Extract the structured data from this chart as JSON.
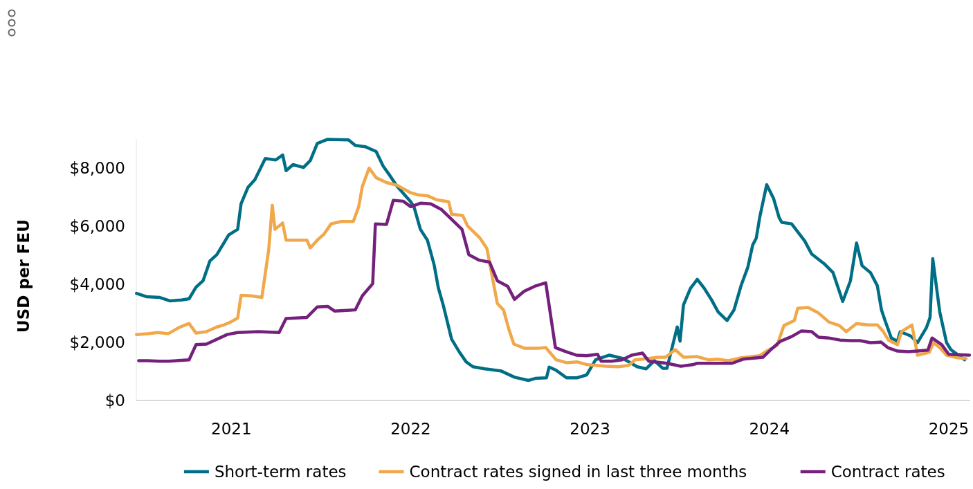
{
  "chart_data": {
    "type": "line",
    "ylabel": "USD per FEU",
    "xlim": [
      2020.47,
      2025.12
    ],
    "xticks": [
      2021,
      2022,
      2023,
      2024,
      2025
    ],
    "yticks": [
      {
        "value": 0,
        "label": "$0"
      },
      {
        "value": 2000,
        "label": "$2,000"
      },
      {
        "value": 4000,
        "label": "$4,000"
      },
      {
        "value": 6000,
        "label": "$6,000"
      },
      {
        "value": 8000,
        "label": "$8,000"
      }
    ],
    "ylim": [
      0,
      9000
    ],
    "grid": false,
    "legend": "bottom",
    "line_style": "solid",
    "marker": "none",
    "series": [
      {
        "name": "Short-term rates",
        "color": "#006e85",
        "x": [
          2020.471,
          2020.529,
          2020.598,
          2020.656,
          2020.722,
          2020.764,
          2020.803,
          2020.842,
          2020.88,
          2020.919,
          2020.958,
          2020.985,
          2021.035,
          2021.054,
          2021.093,
          2021.131,
          2021.189,
          2021.247,
          2021.286,
          2021.305,
          2021.344,
          2021.402,
          2021.44,
          2021.479,
          2021.537,
          2021.653,
          2021.691,
          2021.749,
          2021.807,
          2021.846,
          2021.884,
          2021.923,
          2022.0,
          2022.019,
          2022.054,
          2022.093,
          2022.131,
          2022.154,
          2022.181,
          2022.228,
          2022.27,
          2022.309,
          2022.347,
          2022.413,
          2022.502,
          2022.579,
          2022.656,
          2022.695,
          2022.757,
          2022.772,
          2022.811,
          2022.869,
          2022.927,
          2022.981,
          2023.031,
          2023.108,
          2023.185,
          2023.263,
          2023.313,
          2023.359,
          2023.405,
          2023.429,
          2023.486,
          2023.502,
          2023.521,
          2023.56,
          2023.598,
          2023.637,
          2023.676,
          2023.714,
          2023.764,
          2023.803,
          2023.842,
          2023.88,
          2023.907,
          2023.927,
          2023.946,
          2023.985,
          2024.023,
          2024.054,
          2024.069,
          2024.124,
          2024.197,
          2024.236,
          2024.305,
          2024.355,
          2024.409,
          2024.452,
          2024.486,
          2024.517,
          2024.564,
          2024.602,
          2024.625,
          2024.645,
          2024.68,
          2024.714,
          2024.73,
          2024.788,
          2024.826,
          2024.876,
          2024.896,
          2024.911,
          2024.923,
          2024.95,
          2024.988,
          2025.012,
          2025.089
        ],
        "values": [
          3690,
          3570,
          3550,
          3430,
          3460,
          3500,
          3900,
          4120,
          4800,
          5020,
          5420,
          5700,
          5890,
          6770,
          7340,
          7600,
          8330,
          8280,
          8450,
          7910,
          8120,
          8020,
          8260,
          8850,
          8990,
          8970,
          8780,
          8730,
          8570,
          8070,
          7740,
          7380,
          6840,
          6650,
          5890,
          5520,
          4660,
          3880,
          3290,
          2110,
          1680,
          1330,
          1160,
          1090,
          1020,
          800,
          690,
          760,
          780,
          1150,
          1040,
          780,
          780,
          880,
          1400,
          1560,
          1440,
          1160,
          1090,
          1370,
          1110,
          1110,
          2530,
          2040,
          3290,
          3860,
          4170,
          3860,
          3480,
          3050,
          2750,
          3120,
          3950,
          4590,
          5350,
          5590,
          6300,
          7430,
          6960,
          6300,
          6130,
          6080,
          5490,
          5040,
          4710,
          4400,
          3410,
          4120,
          5420,
          4640,
          4400,
          3950,
          3120,
          2750,
          2150,
          2040,
          2370,
          2220,
          1990,
          2510,
          2860,
          4880,
          4310,
          3050,
          1990,
          1750,
          1400
        ]
      },
      {
        "name": "Contract rates signed in last three months",
        "color": "#f0a84a",
        "x": [
          2020.471,
          2020.533,
          2020.591,
          2020.649,
          2020.707,
          2020.764,
          2020.803,
          2020.861,
          2020.919,
          2020.958,
          2020.996,
          2021.035,
          2021.054,
          2021.112,
          2021.17,
          2021.208,
          2021.228,
          2021.243,
          2021.286,
          2021.305,
          2021.421,
          2021.44,
          2021.479,
          2021.517,
          2021.556,
          2021.614,
          2021.68,
          2021.71,
          2021.73,
          2021.768,
          2021.807,
          2021.865,
          2021.923,
          2022.0,
          2022.039,
          2022.093,
          2022.143,
          2022.212,
          2022.228,
          2022.29,
          2022.317,
          2022.386,
          2022.425,
          2022.483,
          2022.517,
          2022.548,
          2022.575,
          2022.633,
          2022.71,
          2022.753,
          2022.811,
          2022.869,
          2022.927,
          2022.985,
          2023.089,
          2023.158,
          2023.216,
          2023.251,
          2023.32,
          2023.378,
          2023.421,
          2023.475,
          2023.521,
          2023.598,
          2023.66,
          2023.714,
          2023.772,
          2023.842,
          2023.946,
          2023.985,
          2024.042,
          2024.081,
          2024.139,
          2024.158,
          2024.216,
          2024.274,
          2024.332,
          2024.39,
          2024.429,
          2024.486,
          2024.548,
          2024.602,
          2024.633,
          2024.664,
          2024.714,
          2024.737,
          2024.795,
          2024.826,
          2024.892,
          2024.915,
          2024.95,
          2024.988,
          2025.05,
          2025.097
        ],
        "values": [
          2270,
          2300,
          2340,
          2300,
          2510,
          2650,
          2320,
          2370,
          2530,
          2600,
          2700,
          2840,
          3620,
          3600,
          3550,
          5180,
          6720,
          5890,
          6110,
          5520,
          5520,
          5250,
          5520,
          5730,
          6080,
          6160,
          6160,
          6670,
          7360,
          8000,
          7670,
          7500,
          7410,
          7150,
          7080,
          7050,
          6910,
          6840,
          6410,
          6370,
          6010,
          5590,
          5230,
          3340,
          3120,
          2440,
          1940,
          1800,
          1800,
          1820,
          1400,
          1300,
          1330,
          1230,
          1180,
          1160,
          1210,
          1400,
          1440,
          1490,
          1490,
          1750,
          1490,
          1510,
          1400,
          1420,
          1370,
          1470,
          1540,
          1700,
          1890,
          2580,
          2750,
          3170,
          3200,
          3010,
          2700,
          2580,
          2370,
          2650,
          2600,
          2600,
          2390,
          2080,
          1920,
          2370,
          2600,
          1560,
          1660,
          1990,
          1820,
          1560,
          1470,
          1440
        ]
      },
      {
        "name": "Contract rates",
        "color": "#74207c",
        "x": [
          2020.483,
          2020.533,
          2020.598,
          2020.649,
          2020.764,
          2020.803,
          2020.861,
          2020.977,
          2021.035,
          2021.151,
          2021.266,
          2021.305,
          2021.421,
          2021.479,
          2021.537,
          2021.575,
          2021.691,
          2021.73,
          2021.788,
          2021.803,
          2021.865,
          2021.903,
          2021.958,
          2022.0,
          2022.054,
          2022.112,
          2022.17,
          2022.286,
          2022.324,
          2022.382,
          2022.44,
          2022.483,
          2022.541,
          2022.579,
          2022.633,
          2022.691,
          2022.753,
          2022.807,
          2022.865,
          2022.923,
          2022.981,
          2023.042,
          2023.062,
          2023.12,
          2023.178,
          2023.232,
          2023.293,
          2023.328,
          2023.429,
          2023.506,
          2023.571,
          2023.598,
          2023.792,
          2023.853,
          2023.965,
          2024.008,
          2024.062,
          2024.124,
          2024.178,
          2024.236,
          2024.274,
          2024.332,
          2024.394,
          2024.452,
          2024.506,
          2024.564,
          2024.622,
          2024.66,
          2024.714,
          2024.776,
          2024.884,
          2024.907,
          2024.961,
          2025.0,
          2025.116
        ],
        "values": [
          1370,
          1370,
          1350,
          1350,
          1400,
          1920,
          1940,
          2270,
          2340,
          2370,
          2340,
          2820,
          2860,
          3220,
          3240,
          3080,
          3120,
          3600,
          4020,
          6080,
          6060,
          6890,
          6860,
          6670,
          6790,
          6770,
          6580,
          5890,
          5020,
          4830,
          4760,
          4120,
          3930,
          3480,
          3760,
          3930,
          4050,
          1820,
          1680,
          1560,
          1540,
          1590,
          1350,
          1350,
          1400,
          1560,
          1630,
          1350,
          1280,
          1180,
          1230,
          1280,
          1280,
          1420,
          1490,
          1750,
          2040,
          2200,
          2390,
          2370,
          2180,
          2150,
          2080,
          2060,
          2060,
          1990,
          2010,
          1820,
          1700,
          1680,
          1730,
          2150,
          1920,
          1590,
          1560
        ]
      }
    ]
  }
}
